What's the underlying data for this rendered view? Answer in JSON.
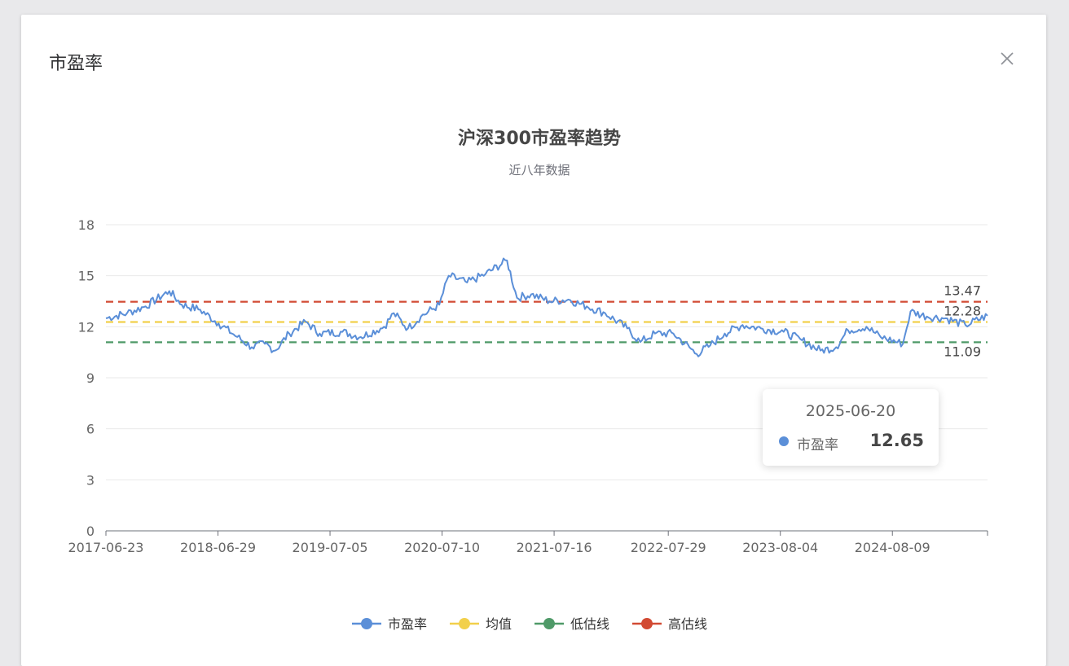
{
  "dialog": {
    "title": "市盈率",
    "close_icon": "close-icon"
  },
  "colors": {
    "pe": "#5b8fd8",
    "mean": "#f2d04b",
    "low": "#4f9a68",
    "high": "#d24a33",
    "grid": "#eaeaea",
    "axis": "#666666"
  },
  "tooltip": {
    "date": "2025-06-20",
    "label": "市盈率",
    "value": "12.65"
  },
  "chart_data": {
    "type": "line",
    "title": "沪深300市盈率趋势",
    "subtitle": "近八年数据",
    "xlim": [
      "2017-06-23",
      "2025-06-20"
    ],
    "ylim": [
      0,
      18
    ],
    "yticks": [
      0,
      3,
      6,
      9,
      12,
      15,
      18
    ],
    "xticks": [
      "2017-06-23",
      "2018-06-29",
      "2019-07-05",
      "2020-07-10",
      "2021-07-16",
      "2022-07-29",
      "2023-08-04",
      "2024-08-09"
    ],
    "grid": true,
    "legend_position": "bottom",
    "series": [
      {
        "name": "市盈率",
        "x": [
          "2017-06-23",
          "2017-09-01",
          "2017-11-01",
          "2018-01-19",
          "2018-03-01",
          "2018-05-01",
          "2018-07-01",
          "2018-09-01",
          "2018-10-19",
          "2018-12-01",
          "2019-01-04",
          "2019-02-20",
          "2019-04-15",
          "2019-06-01",
          "2019-08-15",
          "2019-10-15",
          "2019-12-31",
          "2020-02-01",
          "2020-03-19",
          "2020-05-01",
          "2020-07-01",
          "2020-08-01",
          "2020-10-01",
          "2020-12-01",
          "2021-02-10",
          "2021-03-15",
          "2021-05-01",
          "2021-07-01",
          "2021-09-01",
          "2021-11-01",
          "2022-01-01",
          "2022-03-15",
          "2022-04-27",
          "2022-06-15",
          "2022-08-15",
          "2022-10-31",
          "2022-12-15",
          "2023-02-01",
          "2023-04-01",
          "2023-06-01",
          "2023-08-15",
          "2023-10-15",
          "2023-12-15",
          "2024-02-05",
          "2024-03-15",
          "2024-05-15",
          "2024-07-01",
          "2024-09-13",
          "2024-10-08",
          "2024-12-01",
          "2025-02-01",
          "2025-04-08",
          "2025-06-20"
        ],
        "values": [
          12.5,
          12.8,
          13.2,
          14.1,
          13.3,
          13.0,
          12.2,
          11.4,
          10.8,
          11.0,
          10.6,
          11.6,
          12.3,
          11.6,
          11.7,
          11.4,
          12.0,
          12.8,
          11.9,
          12.6,
          13.3,
          15.0,
          14.6,
          15.1,
          15.9,
          13.7,
          13.9,
          13.5,
          13.6,
          13.2,
          12.8,
          11.9,
          11.1,
          11.6,
          11.6,
          10.4,
          10.9,
          11.6,
          12.1,
          11.9,
          11.7,
          11.2,
          10.6,
          10.8,
          11.8,
          12.0,
          11.4,
          11.0,
          12.9,
          12.6,
          12.5,
          12.1,
          12.65
        ]
      },
      {
        "name": "均值",
        "values": [
          12.28
        ]
      },
      {
        "name": "低估线",
        "values": [
          11.09
        ]
      },
      {
        "name": "高估线",
        "values": [
          13.47
        ]
      }
    ],
    "reference_labels": [
      "13.47",
      "12.28",
      "11.09"
    ]
  }
}
